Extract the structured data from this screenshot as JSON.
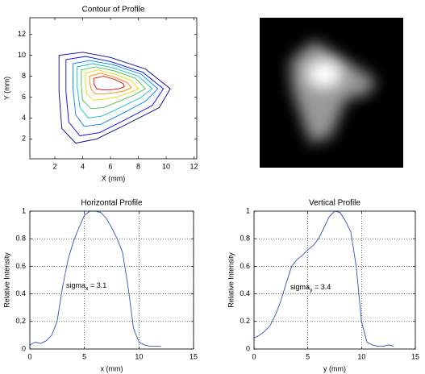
{
  "chart_data": [
    {
      "type": "contour",
      "title": "Contour of Profile",
      "xlabel": "X (mm)",
      "ylabel": "Y (mm)",
      "xlim": [
        0.2,
        12.2
      ],
      "ylim": [
        0.1,
        13.6
      ],
      "xticks": [
        2,
        4,
        6,
        8,
        10,
        12
      ],
      "yticks": [
        2,
        4,
        6,
        8,
        10,
        12
      ],
      "grid": false,
      "series": [
        {
          "color": "#00008b",
          "x": [
            2.3,
            4,
            6,
            8.5,
            10.3,
            9.5,
            7,
            5,
            3.5,
            2.5,
            2.3
          ],
          "y": [
            10,
            10.3,
            9.8,
            8.7,
            6.8,
            5,
            3.3,
            2,
            1.6,
            3,
            6.5
          ]
        },
        {
          "color": "#0000ff",
          "x": [
            2.8,
            4.2,
            6,
            8.3,
            9.8,
            9,
            7,
            5.2,
            3.8,
            3,
            2.8
          ],
          "y": [
            9.6,
            9.9,
            9.4,
            8.4,
            6.8,
            5.2,
            3.8,
            2.6,
            2.3,
            3.6,
            6.5
          ]
        },
        {
          "color": "#0080ff",
          "x": [
            3.3,
            4.5,
            6.2,
            8.2,
            9.4,
            8.5,
            6.8,
            5.3,
            4.1,
            3.5,
            3.3
          ],
          "y": [
            9.2,
            9.5,
            9.1,
            8.2,
            6.8,
            5.6,
            4.4,
            3.4,
            3.2,
            4.3,
            6.8
          ]
        },
        {
          "color": "#00c0c0",
          "x": [
            3.6,
            4.7,
            6.2,
            8,
            9,
            8.1,
            6.7,
            5.4,
            4.4,
            3.8,
            3.6
          ],
          "y": [
            8.9,
            9.2,
            8.8,
            8,
            6.8,
            5.9,
            5,
            4.2,
            4,
            5,
            7
          ]
        },
        {
          "color": "#40c040",
          "x": [
            3.9,
            4.9,
            6.3,
            7.8,
            8.5,
            7.7,
            6.6,
            5.5,
            4.6,
            4,
            3.9
          ],
          "y": [
            8.6,
            8.9,
            8.5,
            7.8,
            6.8,
            6.2,
            5.6,
            5,
            4.9,
            5.7,
            7.2
          ]
        },
        {
          "color": "#e0e000",
          "x": [
            4.2,
            5.1,
            6.3,
            7.5,
            8,
            7.3,
            6.4,
            5.5,
            4.8,
            4.3,
            4.2
          ],
          "y": [
            8.3,
            8.6,
            8.2,
            7.6,
            6.8,
            6.4,
            6,
            5.8,
            5.7,
            6.3,
            7.4
          ]
        },
        {
          "color": "#ff8000",
          "x": [
            4.5,
            5.3,
            6.3,
            7.2,
            7.5,
            7,
            6.2,
            5.4,
            4.9,
            4.6,
            4.5
          ],
          "y": [
            8,
            8.3,
            7.9,
            7.4,
            6.9,
            6.6,
            6.4,
            6.3,
            6.3,
            6.8,
            7.5
          ]
        },
        {
          "color": "#e00000",
          "x": [
            4.8,
            5.5,
            6.3,
            6.9,
            7,
            6.6,
            6,
            5.4,
            5,
            4.8
          ],
          "y": [
            7.8,
            8,
            7.7,
            7.3,
            7,
            6.8,
            6.7,
            6.7,
            6.8,
            7.3
          ]
        }
      ]
    },
    {
      "type": "line",
      "title": "Horizontal Profile",
      "xlabel": "x (mm)",
      "ylabel": "Relative Intensity",
      "xlim": [
        0,
        15
      ],
      "ylim": [
        0,
        1
      ],
      "xticks": [
        0,
        5,
        10,
        15
      ],
      "yticks": [
        0,
        0.2,
        0.4,
        0.6,
        0.8,
        1
      ],
      "grid": true,
      "color": "#3050c0",
      "x": [
        0,
        0.5,
        1,
        1.5,
        2,
        2.5,
        3,
        3.5,
        4,
        4.5,
        5,
        5.5,
        6,
        6.5,
        7,
        7.5,
        8,
        8.5,
        9,
        9.5,
        10,
        10.5,
        11,
        11.5,
        12
      ],
      "values": [
        0.03,
        0.05,
        0.04,
        0.06,
        0.1,
        0.2,
        0.45,
        0.65,
        0.78,
        0.88,
        0.97,
        1,
        1,
        0.99,
        0.95,
        0.88,
        0.8,
        0.7,
        0.45,
        0.15,
        0.05,
        0.03,
        0.02,
        0.02,
        0.02
      ],
      "annotation": {
        "text": "sigma",
        "subscript": "x",
        "suffix": " = 3.1"
      }
    },
    {
      "type": "line",
      "title": "Vertical Profile",
      "xlabel": "y (mm)",
      "ylabel": "Relative Intensity",
      "xlim": [
        0,
        15
      ],
      "ylim": [
        0,
        1
      ],
      "xticks": [
        0,
        5,
        10,
        15
      ],
      "yticks": [
        0,
        0.2,
        0.4,
        0.6,
        0.8,
        1
      ],
      "grid": true,
      "color": "#3050c0",
      "x": [
        0,
        0.5,
        1,
        1.5,
        2,
        2.5,
        3,
        3.5,
        4,
        4.5,
        5,
        5.5,
        6,
        6.5,
        7,
        7.5,
        8,
        8.5,
        9,
        9.5,
        10,
        10.5,
        11,
        11.5,
        12,
        12.5,
        13
      ],
      "values": [
        0.08,
        0.1,
        0.13,
        0.17,
        0.25,
        0.35,
        0.48,
        0.6,
        0.65,
        0.68,
        0.72,
        0.75,
        0.8,
        0.88,
        0.96,
        1,
        0.99,
        0.93,
        0.85,
        0.6,
        0.2,
        0.05,
        0.03,
        0.02,
        0.02,
        0.03,
        0.02
      ],
      "annotation": {
        "text": "sigma",
        "subscript": "y",
        "suffix": " = 3.4"
      }
    }
  ]
}
